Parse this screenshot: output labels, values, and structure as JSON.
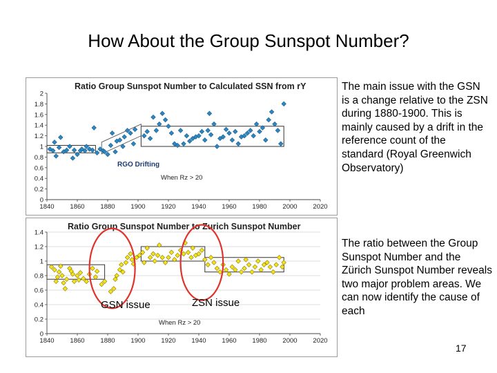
{
  "title": "How About the Group Sunspot Number?",
  "note1": "The main issue with the GSN is a change relative to the ZSN during 1880-1900. This is mainly caused by a drift in the reference count of the standard (Royal Greenwich Observatory)",
  "note2": "The ratio between the Group Sunspot Number and the Zürich Sunspot Number reveals two major problem areas. We can now identify the cause of each",
  "page_number": "17",
  "chart_data": [
    {
      "type": "scatter",
      "title": "Ratio Group Sunspot Number to Calculated SSN from rY",
      "xlabel": "",
      "ylabel": "",
      "xlim": [
        1840,
        2020
      ],
      "ylim": [
        0,
        2
      ],
      "x_ticks": [
        "1840",
        "1860",
        "1880",
        "1900",
        "1920",
        "1940",
        "1960",
        "1980",
        "2000",
        "2020"
      ],
      "y_ticks": [
        "0",
        "0.2",
        "0.4",
        "0.6",
        "0.8",
        "1",
        "1.2",
        "1.4",
        "1.6",
        "1.8",
        "2"
      ],
      "grid": false,
      "marker_color": "#2e86c1",
      "annotations": [
        "RGO Drifting",
        "When Rz > 20"
      ],
      "points": [
        [
          1842,
          0.95
        ],
        [
          1844,
          0.92
        ],
        [
          1845,
          1.08
        ],
        [
          1846,
          0.82
        ],
        [
          1848,
          0.98
        ],
        [
          1849,
          1.17
        ],
        [
          1851,
          0.9
        ],
        [
          1853,
          0.93
        ],
        [
          1855,
          1.0
        ],
        [
          1857,
          0.78
        ],
        [
          1858,
          0.93
        ],
        [
          1860,
          0.85
        ],
        [
          1862,
          0.92
        ],
        [
          1863,
          0.95
        ],
        [
          1865,
          0.92
        ],
        [
          1866,
          1.0
        ],
        [
          1868,
          0.95
        ],
        [
          1870,
          0.93
        ],
        [
          1871,
          1.35
        ],
        [
          1873,
          0.88
        ],
        [
          1875,
          0.95
        ],
        [
          1877,
          0.92
        ],
        [
          1878,
          0.9
        ],
        [
          1880,
          0.85
        ],
        [
          1882,
          1.02
        ],
        [
          1883,
          1.25
        ],
        [
          1885,
          0.9
        ],
        [
          1886,
          1.1
        ],
        [
          1888,
          1.12
        ],
        [
          1890,
          1.0
        ],
        [
          1891,
          1.18
        ],
        [
          1893,
          1.3
        ],
        [
          1895,
          1.25
        ],
        [
          1897,
          1.05
        ],
        [
          1898,
          1.32
        ],
        [
          1904,
          1.2
        ],
        [
          1906,
          1.28
        ],
        [
          1908,
          1.15
        ],
        [
          1910,
          1.55
        ],
        [
          1912,
          1.3
        ],
        [
          1914,
          1.42
        ],
        [
          1916,
          1.62
        ],
        [
          1918,
          1.5
        ],
        [
          1920,
          1.38
        ],
        [
          1922,
          1.25
        ],
        [
          1924,
          1.05
        ],
        [
          1926,
          1.02
        ],
        [
          1928,
          1.3
        ],
        [
          1930,
          1.05
        ],
        [
          1932,
          1.2
        ],
        [
          1934,
          1.1
        ],
        [
          1936,
          1.15
        ],
        [
          1938,
          1.18
        ],
        [
          1940,
          1.2
        ],
        [
          1942,
          1.28
        ],
        [
          1944,
          1.12
        ],
        [
          1946,
          1.3
        ],
        [
          1947,
          1.62
        ],
        [
          1948,
          1.22
        ],
        [
          1950,
          1.42
        ],
        [
          1952,
          1.0
        ],
        [
          1954,
          1.15
        ],
        [
          1956,
          1.18
        ],
        [
          1958,
          1.32
        ],
        [
          1960,
          1.25
        ],
        [
          1962,
          1.12
        ],
        [
          1964,
          1.28
        ],
        [
          1966,
          1.05
        ],
        [
          1968,
          1.18
        ],
        [
          1970,
          1.2
        ],
        [
          1972,
          1.25
        ],
        [
          1974,
          1.3
        ],
        [
          1976,
          1.2
        ],
        [
          1978,
          1.42
        ],
        [
          1980,
          1.28
        ],
        [
          1982,
          1.35
        ],
        [
          1984,
          1.12
        ],
        [
          1986,
          1.5
        ],
        [
          1988,
          1.65
        ],
        [
          1990,
          1.42
        ],
        [
          1992,
          1.3
        ],
        [
          1994,
          1.05
        ],
        [
          1996,
          1.8
        ]
      ],
      "level_boxes": [
        {
          "x": [
            1840,
            1872
          ],
          "y": [
            0.88,
            1.02
          ]
        },
        {
          "x": [
            1902,
            1996
          ],
          "y": [
            1.0,
            1.38
          ]
        }
      ]
    },
    {
      "type": "scatter",
      "title": "Ratio Group Sunspot Number to Zurich Sunspot Number",
      "xlabel": "",
      "ylabel": "",
      "xlim": [
        1840,
        2020
      ],
      "ylim": [
        0,
        1.4
      ],
      "x_ticks": [
        "1840",
        "1860",
        "1880",
        "1900",
        "1920",
        "1940",
        "1960",
        "1980",
        "2000",
        "2020"
      ],
      "y_ticks": [
        "0",
        "0.2",
        "0.4",
        "0.6",
        "0.8",
        "1",
        "1.2",
        "1.4"
      ],
      "grid": true,
      "marker_color": "#f4e21a",
      "annotations": [
        "When Rz > 20",
        "GSN issue",
        "ZSN issue"
      ],
      "points": [
        [
          1843,
          0.92
        ],
        [
          1845,
          0.88
        ],
        [
          1846,
          0.72
        ],
        [
          1847,
          0.78
        ],
        [
          1848,
          0.85
        ],
        [
          1849,
          0.93
        ],
        [
          1850,
          0.8
        ],
        [
          1851,
          0.7
        ],
        [
          1852,
          0.62
        ],
        [
          1853,
          0.75
        ],
        [
          1855,
          0.9
        ],
        [
          1856,
          0.86
        ],
        [
          1857,
          0.82
        ],
        [
          1858,
          0.72
        ],
        [
          1860,
          0.8
        ],
        [
          1861,
          0.74
        ],
        [
          1862,
          0.84
        ],
        [
          1864,
          0.76
        ],
        [
          1866,
          0.72
        ],
        [
          1868,
          0.82
        ],
        [
          1870,
          0.9
        ],
        [
          1872,
          0.78
        ],
        [
          1873,
          0.86
        ],
        [
          1876,
          0.68
        ],
        [
          1878,
          0.72
        ],
        [
          1882,
          0.58
        ],
        [
          1884,
          0.62
        ],
        [
          1885,
          0.75
        ],
        [
          1886,
          0.8
        ],
        [
          1888,
          0.88
        ],
        [
          1889,
          0.95
        ],
        [
          1890,
          0.85
        ],
        [
          1892,
          0.98
        ],
        [
          1893,
          1.05
        ],
        [
          1895,
          1.1
        ],
        [
          1896,
          1.02
        ],
        [
          1897,
          0.96
        ],
        [
          1899,
          1.05
        ],
        [
          1901,
          1.08
        ],
        [
          1903,
          1.12
        ],
        [
          1904,
          0.98
        ],
        [
          1906,
          1.18
        ],
        [
          1908,
          1.05
        ],
        [
          1910,
          1.1
        ],
        [
          1911,
          1.0
        ],
        [
          1913,
          1.08
        ],
        [
          1914,
          1.22
        ],
        [
          1916,
          1.05
        ],
        [
          1918,
          0.98
        ],
        [
          1920,
          1.05
        ],
        [
          1922,
          1.12
        ],
        [
          1924,
          1.02
        ],
        [
          1926,
          1.08
        ],
        [
          1928,
          1.15
        ],
        [
          1930,
          1.1
        ],
        [
          1931,
          1.25
        ],
        [
          1933,
          1.12
        ],
        [
          1935,
          1.05
        ],
        [
          1936,
          1.18
        ],
        [
          1938,
          1.08
        ],
        [
          1940,
          1.1
        ],
        [
          1942,
          1.15
        ],
        [
          1944,
          1.02
        ],
        [
          1946,
          0.95
        ],
        [
          1948,
          1.05
        ],
        [
          1950,
          0.98
        ],
        [
          1952,
          0.9
        ],
        [
          1954,
          0.85
        ],
        [
          1956,
          0.95
        ],
        [
          1958,
          0.88
        ],
        [
          1960,
          0.82
        ],
        [
          1962,
          0.92
        ],
        [
          1964,
          0.88
        ],
        [
          1966,
          1.0
        ],
        [
          1968,
          0.85
        ],
        [
          1970,
          0.9
        ],
        [
          1971,
          1.02
        ],
        [
          1973,
          0.95
        ],
        [
          1975,
          0.85
        ],
        [
          1977,
          0.92
        ],
        [
          1979,
          1.0
        ],
        [
          1981,
          0.88
        ],
        [
          1983,
          0.95
        ],
        [
          1985,
          0.98
        ],
        [
          1987,
          0.92
        ],
        [
          1989,
          0.85
        ],
        [
          1991,
          0.95
        ],
        [
          1993,
          1.05
        ],
        [
          1995,
          0.92
        ],
        [
          1996,
          0.98
        ]
      ],
      "level_boxes": [
        {
          "x": [
            1840,
            1878
          ],
          "y": [
            0.75,
            0.95
          ]
        },
        {
          "x": [
            1902,
            1944
          ],
          "y": [
            1.0,
            1.2
          ]
        },
        {
          "x": [
            1944,
            1996
          ],
          "y": [
            0.85,
            1.05
          ]
        }
      ],
      "circles": [
        {
          "x": 1883,
          "y": 0.9,
          "rx_years": 15,
          "ry": 0.55
        },
        {
          "x": 1942,
          "y": 0.98,
          "rx_years": 14,
          "ry": 0.52
        }
      ]
    }
  ]
}
